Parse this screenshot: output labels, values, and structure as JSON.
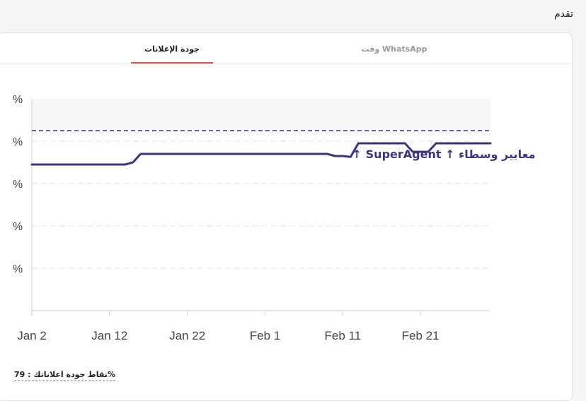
{
  "header": {
    "title": "تقدم"
  },
  "tabs": [
    {
      "label": "جودة الإعلانات",
      "active": true
    },
    {
      "label": "وقت WhatsApp",
      "active": false
    }
  ],
  "footer": {
    "text": "نقاط جودة اعلاناتك : 79%"
  },
  "colors": {
    "line": "#3d347f",
    "accent": "#d9534f",
    "band": "#f7f7fa"
  },
  "chart_data": {
    "type": "line",
    "y_tick_labels": [
      "%",
      "%",
      "%",
      "%",
      "%"
    ],
    "x_tick_labels": [
      "Jan 2",
      "Jan 12",
      "Jan 22",
      "Feb 1",
      "Feb 11",
      "Feb 21"
    ],
    "x_ticks": [
      0,
      10,
      20,
      30,
      40,
      50
    ],
    "xlim": [
      0,
      59
    ],
    "ylim": [
      50,
      100
    ],
    "grid": true,
    "reference_line": {
      "value": 92.5,
      "style": "dashed"
    },
    "annotation": {
      "label": "معايير وسطاء ↑ SuperAgent ↑",
      "x": 53,
      "y": 87
    },
    "series": [
      {
        "x": [
          0,
          12,
          13,
          14,
          38,
          39,
          40,
          41,
          42,
          48,
          49,
          51,
          52,
          59
        ],
        "y": [
          84.5,
          84.5,
          85,
          87,
          87,
          86.5,
          86.5,
          86.3,
          89.5,
          89.5,
          87.5,
          87.5,
          89.5,
          89.5
        ]
      }
    ]
  }
}
